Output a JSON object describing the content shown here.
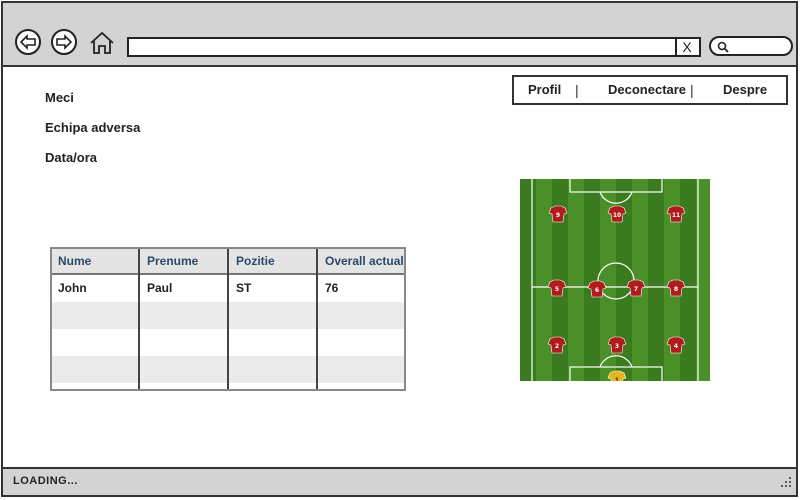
{
  "browser": {
    "url": "",
    "clear_glyph": "X"
  },
  "menu": {
    "items": [
      {
        "label": "Profil"
      },
      {
        "label": "Deconectare"
      },
      {
        "label": "Despre"
      }
    ],
    "separator": "|"
  },
  "info": {
    "meci_label": "Meci",
    "echipa_label": "Echipa adversa",
    "data_label": "Data/ora"
  },
  "table": {
    "headers": [
      "Nume",
      "Prenume",
      "Pozitie",
      "Overall actual"
    ],
    "rows": [
      [
        "John",
        "Paul",
        "ST",
        "76"
      ],
      [
        "",
        "",
        "",
        ""
      ],
      [
        "",
        "",
        "",
        ""
      ],
      [
        "",
        "",
        "",
        ""
      ]
    ]
  },
  "formation": {
    "players": [
      {
        "number": "9",
        "role": "outfield"
      },
      {
        "number": "10",
        "role": "outfield"
      },
      {
        "number": "11",
        "role": "outfield"
      },
      {
        "number": "5",
        "role": "outfield"
      },
      {
        "number": "6",
        "role": "outfield"
      },
      {
        "number": "7",
        "role": "outfield"
      },
      {
        "number": "8",
        "role": "outfield"
      },
      {
        "number": "2",
        "role": "outfield"
      },
      {
        "number": "3",
        "role": "outfield"
      },
      {
        "number": "4",
        "role": "outfield"
      },
      {
        "number": "1",
        "role": "goalkeeper"
      }
    ],
    "colors": {
      "grass_dark": "#3b7a1e",
      "grass_light": "#4a8f28",
      "shirt": "#b01c1c",
      "keeper": "#e6b41c"
    }
  },
  "status": {
    "text": "LOADING..."
  }
}
